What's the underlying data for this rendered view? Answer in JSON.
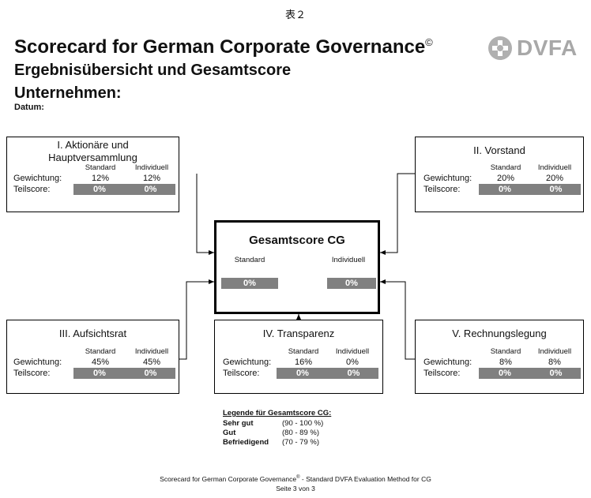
{
  "caption": "表２",
  "title": "Scorecard for German Corporate Governance",
  "title_mark": "©",
  "subtitle": "Ergebnisübersicht und Gesamtscore",
  "company_label": "Unternehmen:",
  "date_label": "Datum:",
  "logo_text": "DVFA",
  "col_standard": "Standard",
  "col_individuell": "Individuell",
  "row_gewichtung": "Gewichtung:",
  "row_teilscore": "Teilscore:",
  "boxes": {
    "b1": {
      "title_line1": "I. Aktionäre und",
      "title_line2": "Hauptversammlung",
      "w_std": "12%",
      "w_ind": "12%",
      "s_std": "0%",
      "s_ind": "0%"
    },
    "b2": {
      "title": "II. Vorstand",
      "w_std": "20%",
      "w_ind": "20%",
      "s_std": "0%",
      "s_ind": "0%"
    },
    "b3": {
      "title": "III. Aufsichtsrat",
      "w_std": "45%",
      "w_ind": "45%",
      "s_std": "0%",
      "s_ind": "0%"
    },
    "b4": {
      "title": "IV. Transparenz",
      "w_std": "16%",
      "w_ind": "0%",
      "s_std": "0%",
      "s_ind": "0%"
    },
    "b5": {
      "title": "V. Rechnungslegung",
      "w_std": "8%",
      "w_ind": "8%",
      "s_std": "0%",
      "s_ind": "0%"
    }
  },
  "total": {
    "title": "Gesamtscore CG",
    "std_label": "Standard",
    "ind_label": "Individuell",
    "std": "0%",
    "ind": "0%"
  },
  "legend": {
    "title": "Legende für Gesamtscore CG:",
    "items": [
      {
        "label": "Sehr gut",
        "range": "(90 - 100 %)"
      },
      {
        "label": "Gut",
        "range": "(80 - 89 %)"
      },
      {
        "label": "Befriedigend",
        "range": "(70 - 79 %)"
      }
    ]
  },
  "footer": {
    "line1_prefix": "Scorecard for German Corporate Governance",
    "line1_mark": "®",
    "line1_suffix": " - Standard DVFA Evaluation Method for CG",
    "line2": "Seite 3 von 3"
  }
}
